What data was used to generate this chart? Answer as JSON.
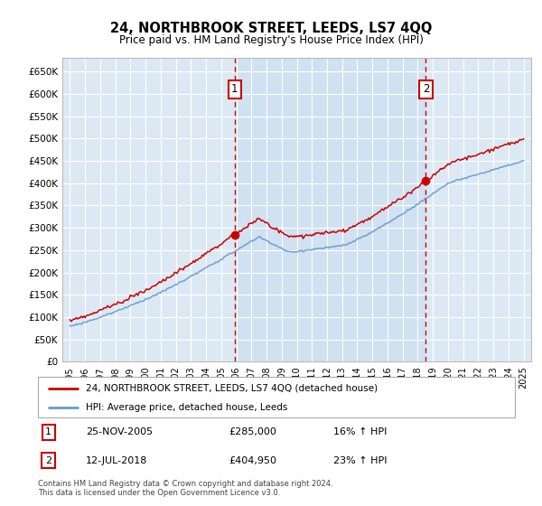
{
  "title": "24, NORTHBROOK STREET, LEEDS, LS7 4QQ",
  "subtitle": "Price paid vs. HM Land Registry's House Price Index (HPI)",
  "legend_line1": "24, NORTHBROOK STREET, LEEDS, LS7 4QQ (detached house)",
  "legend_line2": "HPI: Average price, detached house, Leeds",
  "sale1_date": "25-NOV-2005",
  "sale1_price": "£285,000",
  "sale1_hpi": "16% ↑ HPI",
  "sale1_year": 2005.9,
  "sale1_value": 285000,
  "sale2_date": "12-JUL-2018",
  "sale2_price": "£404,950",
  "sale2_hpi": "23% ↑ HPI",
  "sale2_year": 2018.54,
  "sale2_value": 404950,
  "footnote1": "Contains HM Land Registry data © Crown copyright and database right 2024.",
  "footnote2": "This data is licensed under the Open Government Licence v3.0.",
  "ylim": [
    0,
    680000
  ],
  "yticks": [
    0,
    50000,
    100000,
    150000,
    200000,
    250000,
    300000,
    350000,
    400000,
    450000,
    500000,
    550000,
    600000,
    650000
  ],
  "ytick_labels": [
    "£0",
    "£50K",
    "£100K",
    "£150K",
    "£200K",
    "£250K",
    "£300K",
    "£350K",
    "£400K",
    "£450K",
    "£500K",
    "£550K",
    "£600K",
    "£650K"
  ],
  "plot_bg": "#dce9f5",
  "shade_bg": "#c8ddf0",
  "line_color_red": "#cc0000",
  "line_color_blue": "#6699cc",
  "marker_color": "#cc0000",
  "dashed_color": "#cc0000",
  "box_color": "#cc0000",
  "grid_color": "#ffffff",
  "spine_color": "#bbbbbb"
}
